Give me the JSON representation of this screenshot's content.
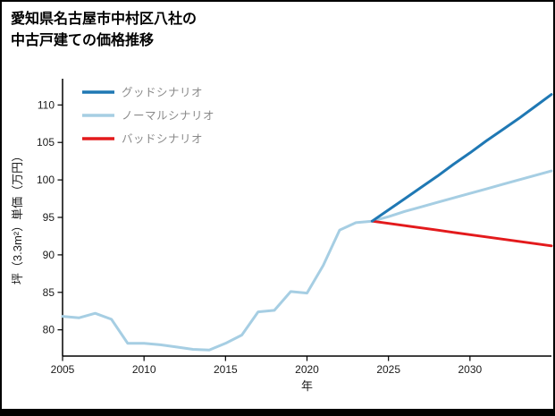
{
  "header": {
    "title_line1": "愛知県名古屋市中村区八社の",
    "title_line2": "中古戸建ての価格推移"
  },
  "chart_data": {
    "type": "line",
    "title": "愛知県名古屋市中村区八社の中古戸建ての価格推移",
    "xlabel": "年",
    "ylabel": "坪（3.3m²）単価（万円）",
    "xlim": [
      2005,
      2035
    ],
    "ylim": [
      76.5,
      113.5
    ],
    "xticks": [
      2005,
      2010,
      2015,
      2020,
      2025,
      2030
    ],
    "yticks": [
      80,
      85,
      90,
      95,
      100,
      105,
      110
    ],
    "grid": false,
    "legend_position": "upper-left",
    "legend": [
      {
        "key": "good-scenario",
        "label": "グッドシナリオ",
        "color": "#1f78b4"
      },
      {
        "key": "normal-scenario",
        "label": "ノーマルシナリオ",
        "color": "#a6cee3"
      },
      {
        "key": "bad-scenario",
        "label": "バッドシナリオ",
        "color": "#e31a1c"
      }
    ],
    "series": [
      {
        "key": "normal-scenario-with-history",
        "name": "ノーマルシナリオ",
        "color": "#a6cee3",
        "width": 3,
        "x": [
          2005,
          2006,
          2007,
          2008,
          2009,
          2010,
          2011,
          2012,
          2013,
          2014,
          2015,
          2016,
          2017,
          2018,
          2019,
          2020,
          2021,
          2022,
          2023,
          2024,
          2025,
          2026,
          2027,
          2028,
          2029,
          2030,
          2031,
          2032,
          2033,
          2034,
          2035
        ],
        "y": [
          81.8,
          81.6,
          82.2,
          81.4,
          78.2,
          78.2,
          78.0,
          77.7,
          77.4,
          77.3,
          78.2,
          79.3,
          82.4,
          82.6,
          85.1,
          84.9,
          88.6,
          93.3,
          94.3,
          94.5,
          95.1,
          95.8,
          96.4,
          97.0,
          97.6,
          98.2,
          98.8,
          99.4,
          100.0,
          100.6,
          101.2
        ]
      },
      {
        "key": "bad-scenario",
        "name": "バッドシナリオ",
        "color": "#e31a1c",
        "width": 3,
        "x": [
          2024,
          2025,
          2026,
          2027,
          2028,
          2029,
          2030,
          2031,
          2032,
          2033,
          2034,
          2035
        ],
        "y": [
          94.5,
          94.2,
          93.9,
          93.6,
          93.3,
          93.0,
          92.7,
          92.4,
          92.1,
          91.8,
          91.5,
          91.2
        ]
      },
      {
        "key": "good-scenario",
        "name": "グッドシナリオ",
        "color": "#1f78b4",
        "width": 3,
        "x": [
          2024,
          2025,
          2026,
          2027,
          2028,
          2029,
          2030,
          2031,
          2032,
          2033,
          2034,
          2035
        ],
        "y": [
          94.5,
          96.0,
          97.5,
          99.0,
          100.5,
          102.1,
          103.6,
          105.2,
          106.7,
          108.2,
          109.8,
          111.4
        ]
      }
    ]
  }
}
